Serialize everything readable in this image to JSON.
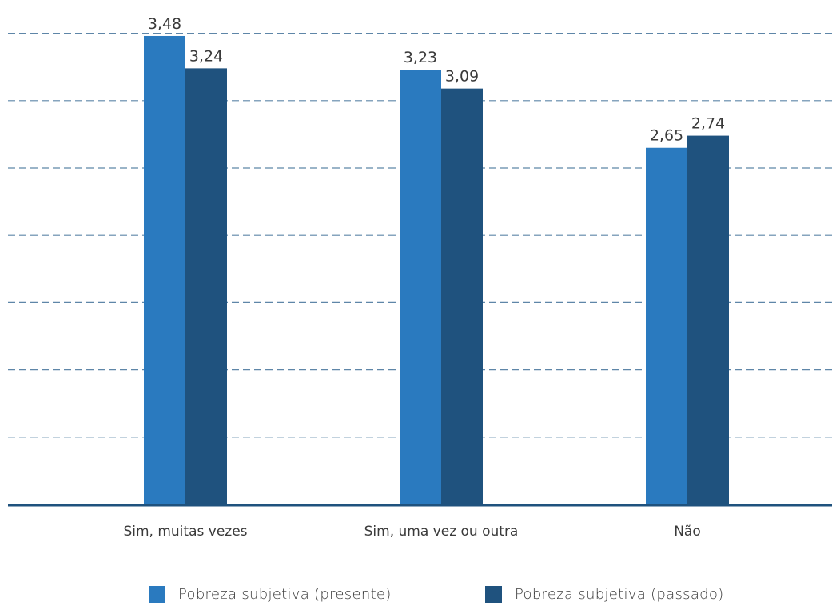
{
  "chart_data": {
    "type": "bar",
    "categories": [
      "Sim, muitas vezes",
      "Sim, uma vez ou outra",
      "Não"
    ],
    "series": [
      {
        "name": "Pobreza subjetiva (presente)",
        "values": [
          3.48,
          3.23,
          2.65
        ],
        "value_labels": [
          "3,48",
          "3,23",
          "2,65"
        ],
        "color": "#2a7abf"
      },
      {
        "name": "Pobreza subjetiva (passado)",
        "values": [
          3.24,
          3.09,
          2.74
        ],
        "value_labels": [
          "3,24",
          "3,09",
          "2,74"
        ],
        "color": "#1f527e"
      }
    ],
    "ylim": [
      0,
      3.5
    ],
    "grid": true,
    "grid_style": "dashed",
    "legend_position": "bottom",
    "axis_color": "#1f527e",
    "grid_color": "#5e86a8"
  }
}
